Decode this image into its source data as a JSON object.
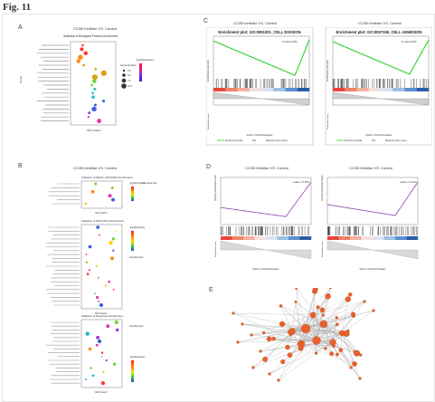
{
  "figure_label": "Fig. 11",
  "panels": {
    "A": {
      "letter": "A",
      "title": "CCI30 inhibitor VS. Control",
      "chart_title": "Statistics of Biological Process Enrichment",
      "xlabel": "Rich Factor",
      "ylabel": "Terms",
      "legend_gene": "GeneNumber",
      "legend_gene_values": [
        "2.5",
        "5.0",
        "7.5",
        "10.0"
      ],
      "legend_q": "-log10(Qvalue)"
    },
    "B": {
      "letter": "B",
      "title": "CCI30 inhibitor VS. Control",
      "subtitles": [
        "Statistics of KEGG_PATHWAY Enrichment",
        "Statistics of WIKI PATH Enrichment",
        "Statistics of Reactome Enrichment"
      ],
      "xlabel": "Rich Factor",
      "legend_q": "-log10(Qvalue)",
      "legend_gene": "GeneNumber"
    },
    "C": {
      "letter": "C",
      "title": "CCI30 inhibitor VS. Control",
      "plots": [
        {
          "heading": "Enrichment plot: GO:0051301_CELL DIVISION",
          "stat": "P value=0.000"
        },
        {
          "heading": "Enrichment plot: GO:0007155_CELL ADHESION",
          "stat": "P value=0.000"
        }
      ],
      "ylabel": "Enrichment score (ES)",
      "ylabel2": "Ranked list metric",
      "xlabel": "Rank in Ordered Dataset",
      "legend": [
        "Enrichment profile",
        "Hits",
        "Ranking metric scores"
      ]
    },
    "D": {
      "letter": "D",
      "title": "CCI30 inhibitor VS. Control",
      "plots": [
        {
          "stat": "pvalue = 0.0007"
        },
        {
          "stat": "pvalue = 0.0012"
        }
      ],
      "ylabel": "Running Enrichment Score",
      "ylabel2": "Ranked list metric",
      "xlabel": "Rank in Ordered Dataset"
    },
    "E": {
      "letter": "E"
    }
  },
  "colors": {
    "enrichment_line": "#2bd12b",
    "gsea_line": "#8a3fb0",
    "network_node": "#e8602c",
    "network_edge": "#a8a8a8"
  }
}
